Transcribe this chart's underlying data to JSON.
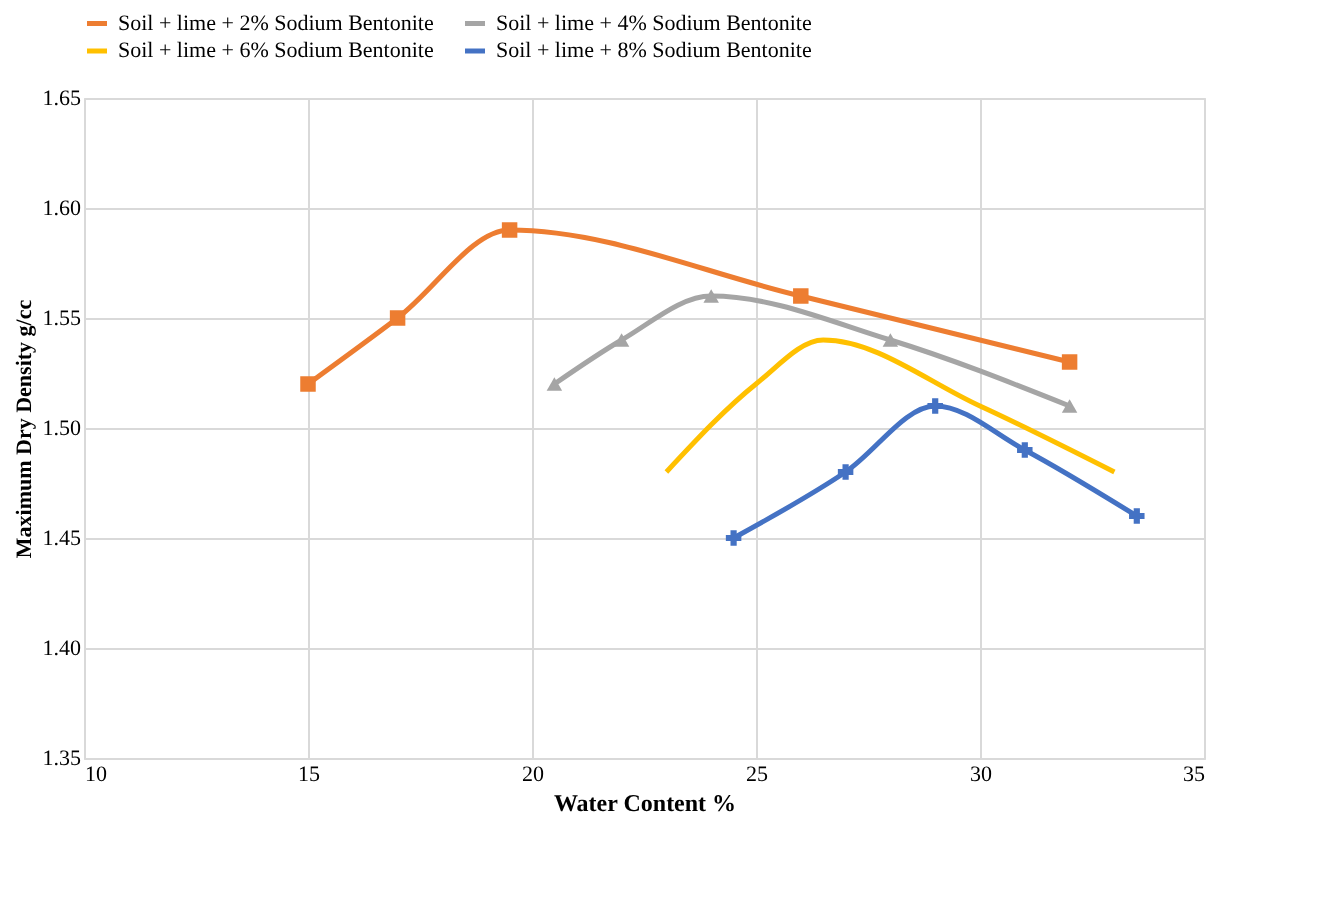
{
  "chart_data": {
    "type": "line",
    "xlabel": "Water Content %",
    "ylabel": "Maximum Dry Density g/cc",
    "xlim": [
      10,
      35
    ],
    "xticks": [
      10,
      15,
      20,
      25,
      30,
      35
    ],
    "ylim": [
      1.35,
      1.65
    ],
    "yticks": [
      1.35,
      {
        "value": 1.4,
        "label": "1.40"
      },
      1.45,
      {
        "value": 1.5,
        "label": "1.50"
      },
      1.55,
      {
        "value": 1.6,
        "label": "1.60"
      },
      1.65
    ],
    "grid": true,
    "legend": "top",
    "line_style": "solid",
    "series": [
      {
        "name": "Soil + lime + 2% Sodium Bentonite",
        "color": "#ed7d31",
        "marker": "square",
        "x": [
          15,
          17,
          19.5,
          26,
          32
        ],
        "values": [
          1.52,
          1.55,
          1.59,
          1.56,
          1.53
        ]
      },
      {
        "name": "Soil + lime + 4% Sodium Bentonite",
        "color": "#a5a5a5",
        "marker": "triangle",
        "x": [
          20.5,
          22,
          24,
          28,
          32
        ],
        "values": [
          1.52,
          1.54,
          1.56,
          1.54,
          1.51
        ]
      },
      {
        "name": "Soil + lime + 6% Sodium Bentonite",
        "color": "#ffc000",
        "marker": "none",
        "x": [
          23,
          25,
          26.5,
          30,
          33
        ],
        "values": [
          1.48,
          1.52,
          1.54,
          1.51,
          1.48
        ]
      },
      {
        "name": "Soil + lime + 8% Sodium Bentonite",
        "color": "#4472c4",
        "marker": "cross",
        "x": [
          24.5,
          27,
          29,
          31,
          33.5
        ],
        "values": [
          1.45,
          1.48,
          1.51,
          1.49,
          1.46
        ]
      }
    ]
  }
}
